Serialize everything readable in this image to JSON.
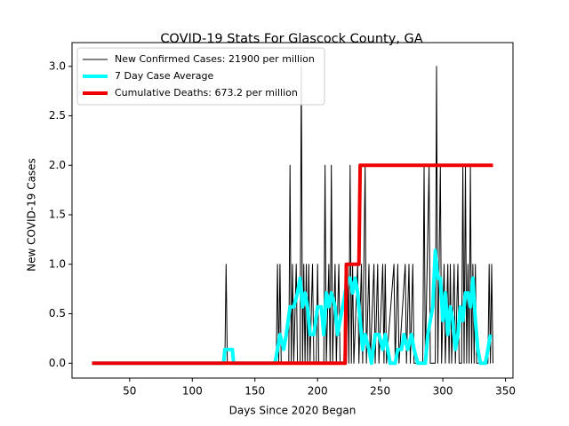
{
  "chart_data": {
    "type": "line",
    "title": "COVID-19 Stats For Glascock County, GA",
    "x_label": "Days Since 2020 Began",
    "y_label": "New COVID-19 Cases",
    "xlim": [
      4,
      356
    ],
    "ylim": [
      -0.15,
      3.24
    ],
    "xticks": [
      50,
      100,
      150,
      200,
      250,
      300,
      350
    ],
    "yticks": [
      {
        "value": 0,
        "label": "0.0"
      },
      {
        "value": 0.5,
        "label": "0.5"
      },
      {
        "value": 1,
        "label": "1.0"
      },
      {
        "value": 1.5,
        "label": "1.5"
      },
      {
        "value": 2,
        "label": "2.0"
      },
      {
        "value": 2.5,
        "label": "2.5"
      },
      {
        "value": 3,
        "label": "3.0"
      }
    ],
    "legend": "upper left",
    "series": [
      {
        "name": "New Confirmed Cases: 21900 per million",
        "color": "#000000",
        "width": 1,
        "x": [
          20,
          126,
          127,
          128,
          167,
          168,
          169,
          170,
          171,
          177,
          178,
          179,
          180,
          181,
          183,
          184,
          186,
          187,
          188,
          189,
          190,
          191,
          192,
          193,
          194,
          196,
          197,
          199,
          200,
          201,
          205,
          206,
          207,
          209,
          210,
          211,
          212,
          214,
          215,
          217,
          218,
          221,
          222,
          223,
          224,
          225,
          226,
          227,
          228,
          229,
          232,
          233,
          235,
          236,
          238,
          239,
          241,
          242,
          245,
          246,
          248,
          249,
          252,
          253,
          254,
          255,
          261,
          262,
          264,
          265,
          270,
          271,
          273,
          274,
          276,
          277,
          284,
          285,
          286,
          289,
          290,
          294,
          295,
          296,
          298,
          299,
          301,
          302,
          304,
          305,
          306,
          307,
          309,
          310,
          312,
          313,
          315,
          316,
          317,
          318,
          319,
          320,
          321,
          322,
          323,
          324,
          325,
          326,
          327,
          336,
          337,
          338,
          339,
          340
        ],
        "values": [
          0,
          0,
          1,
          0,
          0,
          1,
          0,
          1,
          0,
          0,
          2,
          0,
          1,
          0,
          1,
          0,
          0,
          3,
          0,
          1,
          0,
          1,
          0,
          1,
          0,
          1,
          0,
          0,
          1,
          0,
          0,
          2,
          0,
          1,
          0,
          2,
          0,
          1,
          0,
          1,
          0,
          0,
          1,
          0,
          1,
          0,
          2,
          0,
          1,
          0,
          1,
          0,
          1,
          0,
          2,
          0,
          1,
          0,
          1,
          0,
          1,
          0,
          1,
          0,
          1,
          0,
          1,
          0,
          1,
          0,
          1,
          0,
          1,
          0,
          1,
          0,
          0,
          2,
          0,
          2,
          0,
          0,
          3,
          0,
          2,
          0,
          1,
          0,
          1,
          0,
          1,
          0,
          1,
          0,
          1,
          0,
          0,
          2,
          0,
          2,
          0,
          1,
          0,
          2,
          0,
          1,
          0,
          1,
          0,
          0,
          1,
          0,
          1,
          0
        ]
      },
      {
        "name": "7 Day Case Average",
        "color": "#00ffff",
        "width": 4,
        "x": [
          20,
          125,
          126,
          132,
          133,
          166,
          168,
          170,
          173,
          175,
          178,
          181,
          184,
          186,
          188,
          190,
          192,
          194,
          197,
          200,
          203,
          205,
          207,
          209,
          211,
          214,
          216,
          218,
          220,
          222,
          224,
          226,
          228,
          230,
          232,
          234,
          236,
          238,
          241,
          243,
          246,
          249,
          252,
          254,
          256,
          258,
          262,
          264,
          267,
          269,
          272,
          275,
          277,
          280,
          286,
          288,
          290,
          292,
          294,
          296,
          298,
          300,
          302,
          304,
          306,
          308,
          310,
          312,
          314,
          316,
          318,
          320,
          322,
          324,
          326,
          328,
          330,
          334,
          336,
          338
        ],
        "values": [
          0,
          0,
          0.14,
          0.14,
          0,
          0,
          0.14,
          0.29,
          0.14,
          0.29,
          0.57,
          0.57,
          0.71,
          0.86,
          0.57,
          0.71,
          0.57,
          0.29,
          0.29,
          0.57,
          0.57,
          0.29,
          0.71,
          0.57,
          0.71,
          0.57,
          0.29,
          0.43,
          0.57,
          0.71,
          0.86,
          0.86,
          0.71,
          0.86,
          0.71,
          0.43,
          0.14,
          0.29,
          0.14,
          0,
          0.29,
          0.29,
          0.14,
          0.29,
          0.14,
          0,
          0,
          0.14,
          0.14,
          0.29,
          0.14,
          0.29,
          0.14,
          0,
          0,
          0.29,
          0.43,
          0.57,
          1.14,
          0.86,
          0.86,
          0.43,
          0.71,
          0.29,
          0.57,
          0.43,
          0.14,
          0.29,
          0.57,
          0.43,
          0.71,
          0.71,
          0.57,
          0.86,
          0.43,
          0.14,
          0,
          0,
          0.14,
          0.29
        ]
      },
      {
        "name": "Cumulative Deaths: 673.2 per million",
        "color": "#ee0000",
        "width": 4,
        "x": [
          20,
          222,
          223,
          233,
          234,
          340
        ],
        "values": [
          0,
          0,
          1,
          1,
          2,
          2
        ]
      }
    ]
  }
}
